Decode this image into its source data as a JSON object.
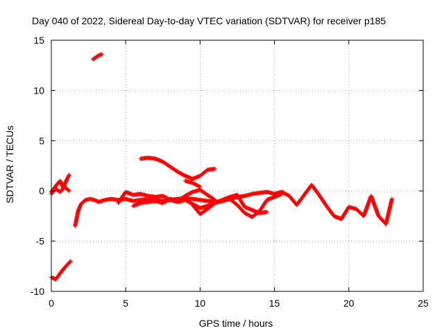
{
  "chart_data": {
    "type": "scatter",
    "title": "Day 040 of 2022, Sidereal Day-to-day VTEC variation (SDTVAR) for receiver p185",
    "xlabel": "GPS time / hours",
    "ylabel": "SDTVAR / TECUs",
    "xlim": [
      0,
      25
    ],
    "ylim": [
      -10,
      15
    ],
    "xticks": [
      "0",
      "5",
      "10",
      "15",
      "20",
      "25"
    ],
    "yticks": [
      "-10",
      "-5",
      "0",
      "5",
      "10",
      "15"
    ],
    "grid": true,
    "marker": "+",
    "color": "#ff0000",
    "series": [
      {
        "name": "seg-a",
        "x": [
          0.0,
          0.2,
          0.4,
          0.6,
          0.8,
          1.0,
          1.2
        ],
        "y": [
          -0.1,
          0.3,
          0.7,
          1.0,
          0.3,
          1.0,
          1.6
        ]
      },
      {
        "name": "seg-b",
        "x": [
          0.0,
          0.3,
          0.6,
          0.9,
          1.2
        ],
        "y": [
          -0.3,
          0.2,
          -0.1,
          0.4,
          0.0
        ]
      },
      {
        "name": "seg-c",
        "x": [
          0.0,
          0.3,
          0.5,
          0.8,
          1.1,
          1.3
        ],
        "y": [
          -8.6,
          -8.8,
          -8.4,
          -7.8,
          -7.3,
          -7.0
        ]
      },
      {
        "name": "seg-d",
        "x": [
          2.8,
          3.0,
          3.2,
          3.4
        ],
        "y": [
          13.1,
          13.3,
          13.5,
          13.6
        ]
      },
      {
        "name": "seg-e",
        "x": [
          1.6,
          1.8,
          2.0,
          2.3,
          2.6,
          2.9,
          3.2,
          3.6,
          4.0,
          4.5,
          5.0,
          5.5,
          6.0,
          6.5,
          7.0,
          7.5,
          8.0,
          8.5,
          9.0,
          9.5,
          10.0,
          10.5,
          11.0,
          11.5,
          12.0,
          12.5,
          13.0,
          13.5,
          14.0,
          14.5,
          15.0,
          15.5,
          16.0,
          16.5,
          17.0,
          17.5,
          18.0,
          18.5,
          19.0,
          19.5,
          20.0,
          20.5,
          21.0,
          21.5,
          22.0,
          22.5,
          22.9
        ],
        "y": [
          -3.5,
          -2.0,
          -1.3,
          -0.9,
          -0.8,
          -0.9,
          -1.1,
          -0.9,
          -0.8,
          -0.9,
          -0.8,
          -1.0,
          -0.9,
          -0.8,
          -0.9,
          -1.0,
          -0.9,
          -0.8,
          -0.7,
          -0.8,
          -0.9,
          -1.0,
          -1.1,
          -1.0,
          -0.8,
          -0.6,
          -0.5,
          -0.3,
          -0.2,
          -0.1,
          -0.3,
          -0.1,
          -0.5,
          -1.4,
          -0.4,
          0.6,
          -0.4,
          -1.5,
          -2.5,
          -2.8,
          -1.6,
          -1.8,
          -2.5,
          -0.5,
          -2.5,
          -3.3,
          -0.8
        ]
      },
      {
        "name": "seg-f",
        "x": [
          4.5,
          5.0,
          5.5,
          6.0,
          6.5,
          7.0,
          7.5,
          8.0,
          8.5,
          9.0,
          9.5,
          10.0,
          10.5,
          11.0,
          11.5,
          12.0,
          12.5,
          13.0,
          13.5,
          14.0,
          14.5,
          15.0,
          15.5
        ],
        "y": [
          -1.2,
          -0.1,
          -0.4,
          -0.3,
          -0.5,
          -0.6,
          -0.5,
          -0.9,
          -1.1,
          -0.9,
          -1.3,
          -1.7,
          -1.5,
          -1.2,
          -1.0,
          -0.8,
          -1.4,
          -2.2,
          -2.6,
          -2.0,
          -0.9,
          -0.6,
          -0.3
        ]
      },
      {
        "name": "seg-g",
        "x": [
          5.5,
          6.0,
          6.5,
          7.0,
          7.5,
          8.0,
          8.5,
          9.0,
          9.5,
          10.0,
          10.5,
          11.0
        ],
        "y": [
          -1.5,
          -1.2,
          -1.1,
          -1.0,
          -1.2,
          -0.8,
          -1.0,
          -0.5,
          -0.1,
          0.1,
          -0.4,
          -0.9
        ]
      },
      {
        "name": "seg-h",
        "x": [
          9.5,
          10.0,
          10.5,
          11.0,
          11.5,
          12.0,
          12.5,
          13.0,
          13.5,
          14.0,
          14.5
        ],
        "y": [
          -1.4,
          -2.3,
          -1.8,
          -1.2,
          -0.9,
          -0.6,
          -0.4,
          -1.6,
          -1.9,
          -2.2,
          -2.1
        ]
      },
      {
        "name": "seg-i",
        "x": [
          6.0,
          6.5,
          7.0,
          7.5,
          8.0,
          8.5,
          9.0,
          9.5,
          10.0,
          10.5,
          11.0
        ],
        "y": [
          3.2,
          3.3,
          3.2,
          2.9,
          2.4,
          1.9,
          1.5,
          1.2,
          1.5,
          2.1,
          2.2
        ]
      },
      {
        "name": "seg-j",
        "x": [
          9.0,
          9.5,
          10.0
        ],
        "y": [
          1.0,
          0.8,
          0.4
        ]
      }
    ]
  }
}
